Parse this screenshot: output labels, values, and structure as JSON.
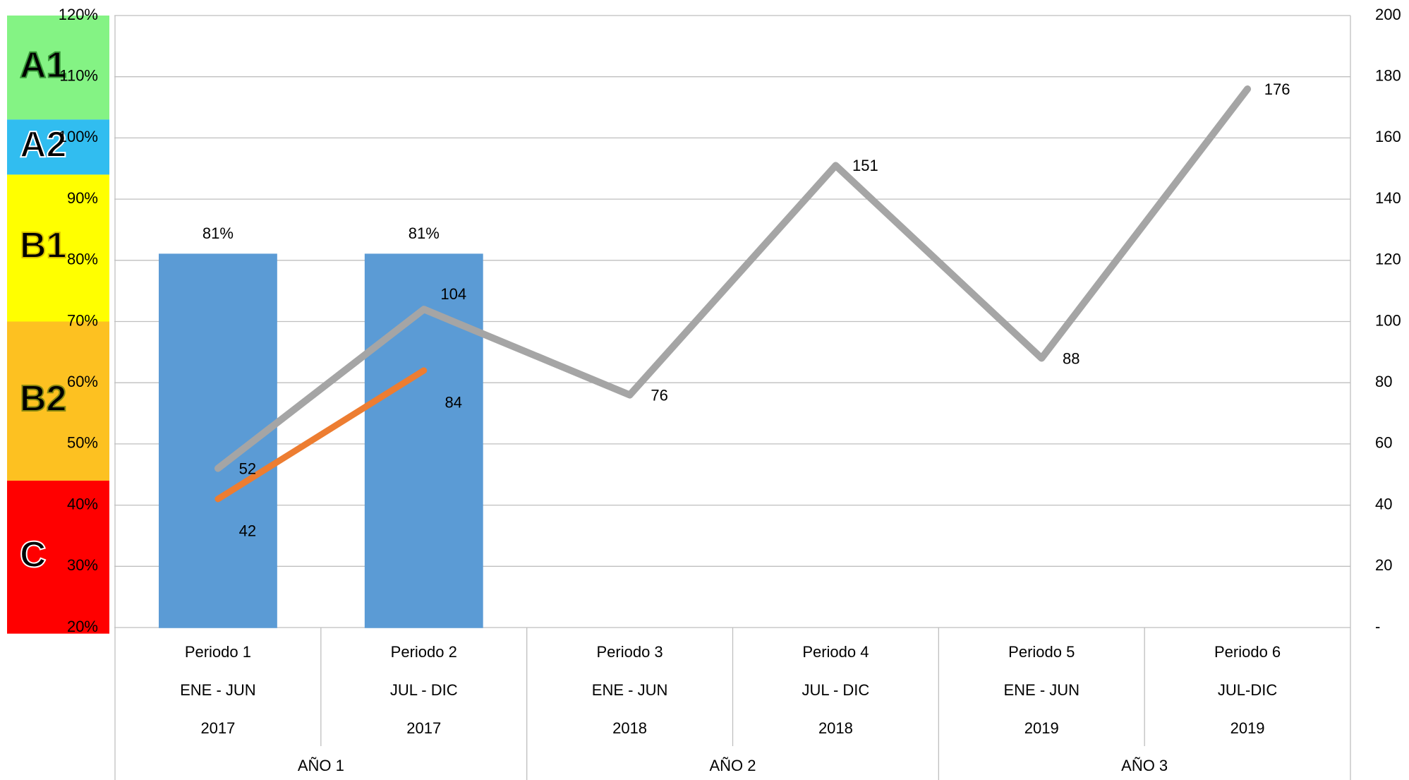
{
  "chart_data": {
    "type": "bar_line",
    "categories": [
      "Periodo 1",
      "Periodo 2",
      "Periodo 3",
      "Periodo 4",
      "Periodo 5",
      "Periodo 6"
    ],
    "sub_categories": [
      "ENE - JUN",
      "JUL - DIC",
      "ENE - JUN",
      "JUL - DIC",
      "ENE - JUN",
      "JUL-DIC"
    ],
    "years": [
      "2017",
      "2017",
      "2018",
      "2018",
      "2019",
      "2019"
    ],
    "groups": [
      "AÑO 1",
      "AÑO 2",
      "AÑO 3"
    ],
    "ylim": [
      20,
      120
    ],
    "yticks": [
      {
        "value": 20,
        "label": "20%"
      },
      {
        "value": 30,
        "label": "30%"
      },
      {
        "value": 40,
        "label": "40%"
      },
      {
        "value": 50,
        "label": "50%"
      },
      {
        "value": 60,
        "label": "60%"
      },
      {
        "value": 70,
        "label": "70%"
      },
      {
        "value": 80,
        "label": "80%"
      },
      {
        "value": 90,
        "label": "90%"
      },
      {
        "value": 100,
        "label": "100%"
      },
      {
        "value": 110,
        "label": "110%"
      },
      {
        "value": 120,
        "label": "120%"
      }
    ],
    "y2lim": [
      0,
      200
    ],
    "y2ticks": [
      {
        "value": 0,
        "label": "-"
      },
      20,
      40,
      60,
      80,
      100,
      120,
      140,
      160,
      180,
      200
    ],
    "grid": true,
    "zones": [
      {
        "label": "A1",
        "color": "#84f384",
        "from": 103,
        "to": 120
      },
      {
        "label": "A2",
        "color": "#31bdf0",
        "from": 94,
        "to": 103
      },
      {
        "label": "B1",
        "color": "#ffff00",
        "from": 70,
        "to": 94
      },
      {
        "label": "B2",
        "color": "#fdc121",
        "from": 44,
        "to": 70
      },
      {
        "label": "C",
        "color": "#ff0000",
        "from": 19,
        "to": 44
      }
    ],
    "series": [
      {
        "type": "bar",
        "color": "#5b9bd5",
        "values": [
          81,
          81,
          20,
          20,
          20,
          20
        ],
        "value_labels": [
          "81%",
          "81%",
          null,
          null,
          null,
          null
        ]
      },
      {
        "type": "line",
        "axis": "y2",
        "color": "#a5a5a5",
        "values": [
          52,
          104,
          76,
          151,
          88,
          176
        ]
      },
      {
        "type": "line",
        "axis": "y2",
        "color": "#ed7d31",
        "values": [
          42,
          84,
          null,
          null,
          null,
          null
        ]
      }
    ]
  }
}
